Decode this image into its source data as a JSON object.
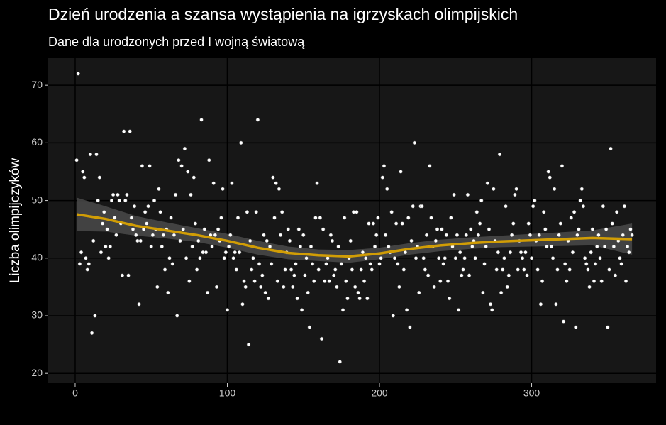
{
  "chart_data": {
    "type": "scatter",
    "title": "Dzień urodzenia a szansa wystąpienia na igrzyskach olimpijskich",
    "subtitle": "Dane dla urodzonych przed I wojną światową",
    "y_label": "Liczba olimpijczyków",
    "color": "#ffffff",
    "x": [
      1,
      2,
      3,
      4,
      5,
      6,
      7,
      8,
      9,
      10,
      11,
      12,
      13,
      14,
      15,
      16,
      17,
      18,
      19,
      20,
      21,
      22,
      23,
      24,
      25,
      26,
      27,
      28,
      29,
      30,
      31,
      32,
      33,
      34,
      35,
      36,
      37,
      38,
      39,
      40,
      41,
      42,
      43,
      44,
      45,
      46,
      47,
      48,
      49,
      50,
      51,
      52,
      53,
      54,
      55,
      56,
      57,
      58,
      59,
      60,
      61,
      62,
      63,
      64,
      65,
      66,
      67,
      68,
      69,
      70,
      71,
      72,
      73,
      74,
      75,
      76,
      77,
      78,
      79,
      80,
      81,
      82,
      83,
      84,
      85,
      86,
      87,
      88,
      89,
      90,
      91,
      92,
      93,
      94,
      95,
      96,
      97,
      98,
      99,
      100,
      101,
      102,
      103,
      104,
      105,
      106,
      107,
      108,
      109,
      110,
      111,
      112,
      113,
      114,
      115,
      116,
      117,
      118,
      119,
      120,
      121,
      122,
      123,
      124,
      125,
      126,
      127,
      128,
      129,
      130,
      131,
      132,
      133,
      134,
      135,
      136,
      137,
      138,
      139,
      140,
      141,
      142,
      143,
      144,
      145,
      146,
      147,
      148,
      149,
      150,
      151,
      152,
      153,
      154,
      155,
      156,
      157,
      158,
      159,
      160,
      161,
      162,
      163,
      164,
      165,
      166,
      167,
      168,
      169,
      170,
      171,
      172,
      173,
      174,
      175,
      176,
      177,
      178,
      179,
      180,
      181,
      182,
      183,
      184,
      185,
      186,
      187,
      188,
      189,
      190,
      191,
      192,
      193,
      194,
      195,
      196,
      197,
      198,
      199,
      200,
      201,
      202,
      203,
      204,
      205,
      206,
      207,
      208,
      209,
      210,
      211,
      212,
      213,
      214,
      215,
      216,
      217,
      218,
      219,
      220,
      221,
      222,
      223,
      224,
      225,
      226,
      227,
      228,
      229,
      230,
      231,
      232,
      233,
      234,
      235,
      236,
      237,
      238,
      239,
      240,
      241,
      242,
      243,
      244,
      245,
      246,
      247,
      248,
      249,
      250,
      251,
      252,
      253,
      254,
      255,
      256,
      257,
      258,
      259,
      260,
      261,
      262,
      263,
      264,
      265,
      266,
      267,
      268,
      269,
      270,
      271,
      272,
      273,
      274,
      275,
      276,
      277,
      278,
      279,
      280,
      281,
      282,
      283,
      284,
      285,
      286,
      287,
      288,
      289,
      290,
      291,
      292,
      293,
      294,
      295,
      296,
      297,
      298,
      299,
      300,
      301,
      302,
      303,
      304,
      305,
      306,
      307,
      308,
      309,
      310,
      311,
      312,
      313,
      314,
      315,
      316,
      317,
      318,
      319,
      320,
      321,
      322,
      323,
      324,
      325,
      326,
      327,
      328,
      329,
      330,
      331,
      332,
      333,
      334,
      335,
      336,
      337,
      338,
      339,
      340,
      341,
      342,
      343,
      344,
      345,
      346,
      347,
      348,
      349,
      350,
      351,
      352,
      353,
      354,
      355,
      356,
      357,
      358,
      359,
      360,
      361,
      362,
      363,
      364,
      365,
      366
    ],
    "values": [
      57,
      72,
      39,
      41,
      55,
      54,
      40,
      38,
      39,
      58,
      27,
      43,
      30,
      58,
      50,
      54,
      41,
      46,
      48,
      42,
      45,
      40,
      42,
      50,
      51,
      47,
      44,
      51,
      50,
      46,
      37,
      62,
      50,
      51,
      37,
      62,
      47,
      45,
      49,
      44,
      43,
      32,
      43,
      56,
      45,
      48,
      46,
      49,
      56,
      42,
      44,
      50,
      45,
      35,
      52,
      48,
      42,
      44,
      38,
      45,
      34,
      40,
      47,
      39,
      44,
      51,
      30,
      57,
      43,
      56,
      45,
      59,
      40,
      55,
      36,
      51,
      42,
      54,
      46,
      38,
      43,
      40,
      64,
      41,
      45,
      41,
      34,
      57,
      44,
      42,
      53,
      44,
      35,
      45,
      43,
      47,
      52,
      40,
      41,
      31,
      42,
      44,
      53,
      40,
      41,
      38,
      47,
      41,
      60,
      32,
      36,
      35,
      48,
      25,
      43,
      38,
      40,
      36,
      48,
      64,
      39,
      35,
      37,
      44,
      34,
      43,
      33,
      42,
      39,
      54,
      47,
      53,
      36,
      52,
      44,
      48,
      35,
      38,
      41,
      45,
      43,
      38,
      35,
      37,
      39,
      33,
      45,
      42,
      31,
      44,
      37,
      40,
      34,
      28,
      42,
      39,
      36,
      47,
      53,
      38,
      47,
      26,
      45,
      36,
      39,
      40,
      36,
      44,
      43,
      37,
      38,
      35,
      42,
      22,
      39,
      31,
      47,
      36,
      33,
      40,
      43,
      38,
      48,
      35,
      48,
      34,
      33,
      38,
      41,
      36,
      40,
      33,
      46,
      39,
      38,
      46,
      42,
      44,
      47,
      39,
      40,
      54,
      56,
      44,
      52,
      42,
      41,
      48,
      30,
      40,
      46,
      39,
      35,
      55,
      46,
      38,
      41,
      31,
      47,
      28,
      43,
      49,
      60,
      40,
      42,
      34,
      49,
      49,
      40,
      38,
      44,
      37,
      56,
      47,
      42,
      35,
      43,
      45,
      40,
      36,
      45,
      39,
      40,
      44,
      36,
      33,
      47,
      42,
      51,
      40,
      44,
      31,
      41,
      37,
      38,
      40,
      44,
      51,
      37,
      45,
      42,
      43,
      40,
      48,
      44,
      46,
      50,
      34,
      39,
      42,
      53,
      45,
      32,
      31,
      52,
      43,
      38,
      41,
      58,
      34,
      38,
      40,
      49,
      35,
      37,
      41,
      44,
      46,
      51,
      52,
      38,
      43,
      41,
      40,
      38,
      41,
      37,
      46,
      44,
      40,
      49,
      50,
      43,
      38,
      44,
      32,
      36,
      48,
      45,
      42,
      55,
      54,
      42,
      40,
      52,
      32,
      38,
      44,
      46,
      56,
      29,
      39,
      36,
      43,
      38,
      47,
      41,
      48,
      28,
      44,
      45,
      50,
      52,
      49,
      40,
      39,
      38,
      35,
      41,
      45,
      36,
      39,
      42,
      44,
      40,
      36,
      49,
      42,
      45,
      28,
      38,
      59,
      46,
      42,
      37,
      48,
      43,
      40,
      39,
      44,
      49,
      36,
      42,
      41,
      45,
      44
    ],
    "smooth": {
      "color": "#d19d05",
      "band_color": "#4d4d4d",
      "x": [
        1,
        20,
        40,
        60,
        80,
        100,
        120,
        140,
        160,
        180,
        200,
        220,
        240,
        260,
        280,
        300,
        320,
        340,
        366
      ],
      "values": [
        47.6,
        46.8,
        45.6,
        44.8,
        44.0,
        43.0,
        41.8,
        40.9,
        40.5,
        40.3,
        40.8,
        41.6,
        42.2,
        42.6,
        42.9,
        43.1,
        43.3,
        43.5,
        43.3
      ],
      "lower": [
        44.7,
        44.6,
        43.9,
        43.4,
        42.8,
        41.8,
        40.6,
        39.8,
        39.5,
        39.2,
        39.8,
        40.6,
        41.2,
        41.6,
        41.9,
        42.0,
        42.1,
        42.2,
        40.6
      ],
      "upper": [
        50.5,
        49.0,
        47.3,
        46.2,
        45.2,
        44.2,
        43.0,
        42.0,
        41.5,
        41.4,
        41.8,
        42.6,
        43.2,
        43.6,
        43.9,
        44.2,
        44.5,
        44.8,
        46.0
      ]
    },
    "xlim": [
      -17.7,
      381.8
    ],
    "ylim": [
      18.3,
      74.7
    ],
    "xticks": [
      0,
      100,
      200,
      300
    ],
    "yticks": [
      20,
      30,
      40,
      50,
      60,
      70
    ],
    "grid": true
  }
}
